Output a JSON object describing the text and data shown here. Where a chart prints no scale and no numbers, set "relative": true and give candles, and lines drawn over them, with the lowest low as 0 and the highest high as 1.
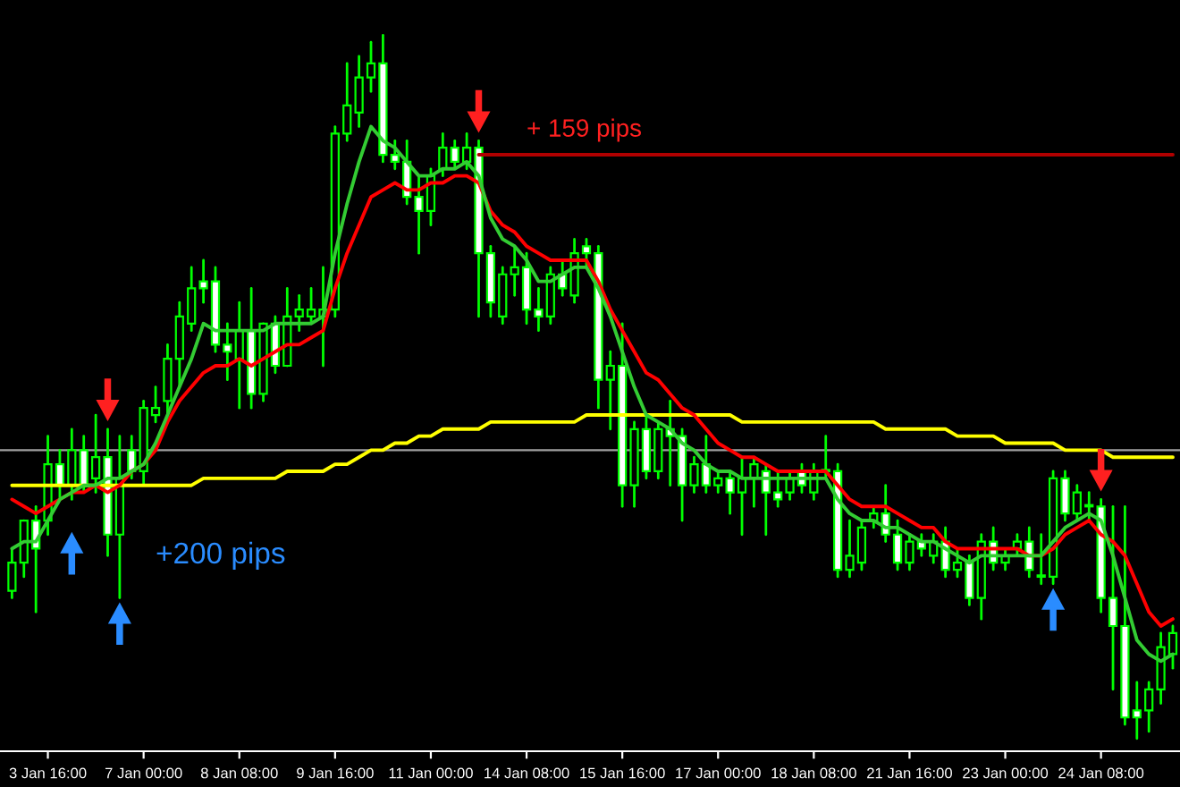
{
  "chart_data": {
    "type": "candlestick",
    "relative": true,
    "color": "#00ff00",
    "grid": false,
    "legend": false,
    "categories": [
      null,
      null,
      null,
      "3 Jan 16:00",
      null,
      null,
      null,
      null,
      null,
      null,
      null,
      "7 Jan 00:00",
      null,
      null,
      null,
      null,
      null,
      null,
      null,
      "8 Jan 08:00",
      null,
      null,
      null,
      null,
      null,
      null,
      null,
      "9 Jan 16:00",
      null,
      null,
      null,
      null,
      null,
      null,
      null,
      "11 Jan 00:00",
      null,
      null,
      null,
      null,
      null,
      null,
      null,
      "14 Jan 08:00",
      null,
      null,
      null,
      null,
      null,
      null,
      null,
      "15 Jan 16:00",
      null,
      null,
      null,
      null,
      null,
      null,
      null,
      "17 Jan 00:00",
      null,
      null,
      null,
      null,
      null,
      null,
      null,
      "18 Jan 08:00",
      null,
      null,
      null,
      null,
      null,
      null,
      null,
      "21 Jan 16:00",
      null,
      null,
      null,
      null,
      null,
      null,
      null,
      "23 Jan 00:00",
      null,
      null,
      null,
      null,
      null,
      null,
      null,
      "24 Jan 08:00",
      null,
      null,
      null,
      null,
      null,
      null
    ],
    "ohlc": [
      [
        0.21,
        0.27,
        0.2,
        0.25
      ],
      [
        0.25,
        0.31,
        0.23,
        0.31
      ],
      [
        0.31,
        0.33,
        0.18,
        0.27
      ],
      [
        0.31,
        0.43,
        0.29,
        0.39
      ],
      [
        0.39,
        0.41,
        0.34,
        0.36
      ],
      [
        0.36,
        0.44,
        0.34,
        0.41
      ],
      [
        0.41,
        0.43,
        0.35,
        0.36
      ],
      [
        0.37,
        0.46,
        0.35,
        0.4
      ],
      [
        0.4,
        0.44,
        0.26,
        0.29
      ],
      [
        0.29,
        0.43,
        0.2,
        0.37
      ],
      [
        0.41,
        0.43,
        0.37,
        0.38
      ],
      [
        0.38,
        0.48,
        0.36,
        0.47
      ],
      [
        0.46,
        0.5,
        0.45,
        0.47
      ],
      [
        0.48,
        0.56,
        0.46,
        0.54
      ],
      [
        0.54,
        0.62,
        0.5,
        0.6
      ],
      [
        0.59,
        0.67,
        0.58,
        0.64
      ],
      [
        0.65,
        0.68,
        0.62,
        0.64
      ],
      [
        0.65,
        0.67,
        0.55,
        0.56
      ],
      [
        0.56,
        0.59,
        0.51,
        0.55
      ],
      [
        0.54,
        0.62,
        0.47,
        0.58
      ],
      [
        0.58,
        0.64,
        0.47,
        0.49
      ],
      [
        0.49,
        0.59,
        0.48,
        0.59
      ],
      [
        0.59,
        0.6,
        0.52,
        0.53
      ],
      [
        0.53,
        0.64,
        0.53,
        0.6
      ],
      [
        0.6,
        0.63,
        0.58,
        0.61
      ],
      [
        0.6,
        0.64,
        0.59,
        0.61
      ],
      [
        0.6,
        0.67,
        0.53,
        0.61
      ],
      [
        0.61,
        0.87,
        0.6,
        0.86
      ],
      [
        0.86,
        0.96,
        0.85,
        0.9
      ],
      [
        0.89,
        0.97,
        0.87,
        0.94
      ],
      [
        0.94,
        0.99,
        0.92,
        0.96
      ],
      [
        0.96,
        1.0,
        0.82,
        0.83
      ],
      [
        0.83,
        0.85,
        0.81,
        0.82
      ],
      [
        0.82,
        0.85,
        0.76,
        0.77
      ],
      [
        0.77,
        0.8,
        0.69,
        0.75
      ],
      [
        0.75,
        0.81,
        0.73,
        0.8
      ],
      [
        0.81,
        0.86,
        0.8,
        0.84
      ],
      [
        0.84,
        0.85,
        0.81,
        0.82
      ],
      [
        0.82,
        0.86,
        0.81,
        0.84
      ],
      [
        0.84,
        0.85,
        0.6,
        0.69
      ],
      [
        0.69,
        0.7,
        0.6,
        0.62
      ],
      [
        0.6,
        0.67,
        0.59,
        0.66
      ],
      [
        0.66,
        0.7,
        0.63,
        0.67
      ],
      [
        0.67,
        0.69,
        0.59,
        0.61
      ],
      [
        0.61,
        0.64,
        0.58,
        0.6
      ],
      [
        0.6,
        0.67,
        0.59,
        0.66
      ],
      [
        0.66,
        0.68,
        0.63,
        0.64
      ],
      [
        0.63,
        0.71,
        0.62,
        0.69
      ],
      [
        0.7,
        0.71,
        0.67,
        0.69
      ],
      [
        0.69,
        0.7,
        0.47,
        0.51
      ],
      [
        0.51,
        0.55,
        0.44,
        0.53
      ],
      [
        0.53,
        0.59,
        0.33,
        0.36
      ],
      [
        0.36,
        0.45,
        0.33,
        0.44
      ],
      [
        0.44,
        0.46,
        0.37,
        0.38
      ],
      [
        0.38,
        0.45,
        0.37,
        0.44
      ],
      [
        0.44,
        0.48,
        0.36,
        0.43
      ],
      [
        0.43,
        0.44,
        0.31,
        0.36
      ],
      [
        0.36,
        0.4,
        0.35,
        0.39
      ],
      [
        0.39,
        0.43,
        0.35,
        0.36
      ],
      [
        0.36,
        0.38,
        0.35,
        0.37
      ],
      [
        0.37,
        0.38,
        0.32,
        0.35
      ],
      [
        0.35,
        0.4,
        0.29,
        0.37
      ],
      [
        0.37,
        0.4,
        0.33,
        0.39
      ],
      [
        0.38,
        0.39,
        0.29,
        0.35
      ],
      [
        0.35,
        0.38,
        0.33,
        0.34
      ],
      [
        0.35,
        0.38,
        0.34,
        0.37
      ],
      [
        0.38,
        0.39,
        0.35,
        0.36
      ],
      [
        0.35,
        0.39,
        0.34,
        0.38
      ],
      [
        0.38,
        0.43,
        0.37,
        0.38
      ],
      [
        0.38,
        0.39,
        0.23,
        0.24
      ],
      [
        0.24,
        0.31,
        0.23,
        0.26
      ],
      [
        0.25,
        0.31,
        0.24,
        0.3
      ],
      [
        0.31,
        0.33,
        0.3,
        0.32
      ],
      [
        0.32,
        0.36,
        0.28,
        0.29
      ],
      [
        0.29,
        0.31,
        0.24,
        0.25
      ],
      [
        0.25,
        0.29,
        0.24,
        0.28
      ],
      [
        0.28,
        0.29,
        0.26,
        0.27
      ],
      [
        0.26,
        0.29,
        0.25,
        0.28
      ],
      [
        0.28,
        0.3,
        0.23,
        0.24
      ],
      [
        0.24,
        0.27,
        0.23,
        0.25
      ],
      [
        0.25,
        0.26,
        0.19,
        0.2
      ],
      [
        0.2,
        0.29,
        0.17,
        0.28
      ],
      [
        0.28,
        0.3,
        0.24,
        0.25
      ],
      [
        0.25,
        0.27,
        0.24,
        0.26
      ],
      [
        0.27,
        0.29,
        0.26,
        0.28
      ],
      [
        0.28,
        0.3,
        0.23,
        0.24
      ],
      [
        0.23,
        0.29,
        0.22,
        0.23
      ],
      [
        0.23,
        0.38,
        0.22,
        0.37
      ],
      [
        0.37,
        0.38,
        0.31,
        0.32
      ],
      [
        0.32,
        0.36,
        0.31,
        0.35
      ],
      [
        0.33,
        0.35,
        0.31,
        0.33
      ],
      [
        0.33,
        0.34,
        0.18,
        0.2
      ],
      [
        0.2,
        0.33,
        0.07,
        0.16
      ],
      [
        0.16,
        0.33,
        0.02,
        0.03
      ],
      [
        0.04,
        0.08,
        0.0,
        0.03
      ],
      [
        0.04,
        0.08,
        0.01,
        0.07
      ],
      [
        0.07,
        0.15,
        0.05,
        0.13
      ],
      [
        0.12,
        0.16,
        0.1,
        0.15
      ]
    ],
    "series": [
      {
        "type": "line",
        "color": "#ffff00",
        "values": [
          0.36,
          0.36,
          0.36,
          0.36,
          0.36,
          0.36,
          0.36,
          0.36,
          0.36,
          0.36,
          0.36,
          0.36,
          0.36,
          0.36,
          0.36,
          0.36,
          0.37,
          0.37,
          0.37,
          0.37,
          0.37,
          0.37,
          0.37,
          0.38,
          0.38,
          0.38,
          0.38,
          0.39,
          0.39,
          0.4,
          0.41,
          0.41,
          0.42,
          0.42,
          0.43,
          0.43,
          0.44,
          0.44,
          0.44,
          0.44,
          0.45,
          0.45,
          0.45,
          0.45,
          0.45,
          0.45,
          0.45,
          0.45,
          0.46,
          0.46,
          0.46,
          0.46,
          0.46,
          0.46,
          0.46,
          0.46,
          0.46,
          0.46,
          0.46,
          0.46,
          0.46,
          0.45,
          0.45,
          0.45,
          0.45,
          0.45,
          0.45,
          0.45,
          0.45,
          0.45,
          0.45,
          0.45,
          0.45,
          0.44,
          0.44,
          0.44,
          0.44,
          0.44,
          0.44,
          0.43,
          0.43,
          0.43,
          0.43,
          0.42,
          0.42,
          0.42,
          0.42,
          0.42,
          0.41,
          0.41,
          0.41,
          0.41,
          0.4,
          0.4,
          0.4,
          0.4,
          0.4,
          0.4
        ]
      },
      {
        "type": "line",
        "color": "#ff0000",
        "values": [
          0.34,
          0.33,
          0.32,
          0.33,
          0.34,
          0.35,
          0.35,
          0.36,
          0.35,
          0.36,
          0.38,
          0.39,
          0.41,
          0.45,
          0.48,
          0.5,
          0.52,
          0.53,
          0.53,
          0.54,
          0.53,
          0.54,
          0.55,
          0.56,
          0.56,
          0.57,
          0.58,
          0.64,
          0.69,
          0.73,
          0.77,
          0.78,
          0.79,
          0.78,
          0.78,
          0.79,
          0.79,
          0.8,
          0.8,
          0.79,
          0.75,
          0.73,
          0.72,
          0.7,
          0.69,
          0.68,
          0.68,
          0.68,
          0.68,
          0.65,
          0.61,
          0.58,
          0.55,
          0.52,
          0.51,
          0.49,
          0.47,
          0.46,
          0.44,
          0.42,
          0.41,
          0.4,
          0.4,
          0.39,
          0.38,
          0.38,
          0.38,
          0.38,
          0.38,
          0.36,
          0.34,
          0.33,
          0.33,
          0.33,
          0.32,
          0.31,
          0.3,
          0.3,
          0.28,
          0.27,
          0.27,
          0.27,
          0.27,
          0.27,
          0.27,
          0.26,
          0.26,
          0.27,
          0.29,
          0.3,
          0.31,
          0.29,
          0.28,
          0.26,
          0.22,
          0.18,
          0.16,
          0.17
        ]
      },
      {
        "type": "line",
        "color": "#33cc33",
        "values": [
          0.27,
          0.28,
          0.28,
          0.31,
          0.34,
          0.35,
          0.36,
          0.36,
          0.37,
          0.37,
          0.38,
          0.39,
          0.42,
          0.46,
          0.5,
          0.54,
          0.59,
          0.58,
          0.58,
          0.58,
          0.58,
          0.58,
          0.59,
          0.59,
          0.59,
          0.59,
          0.6,
          0.69,
          0.76,
          0.82,
          0.87,
          0.85,
          0.84,
          0.82,
          0.8,
          0.8,
          0.81,
          0.81,
          0.82,
          0.8,
          0.74,
          0.71,
          0.7,
          0.68,
          0.65,
          0.65,
          0.66,
          0.67,
          0.67,
          0.64,
          0.6,
          0.55,
          0.5,
          0.46,
          0.45,
          0.44,
          0.42,
          0.41,
          0.39,
          0.38,
          0.38,
          0.37,
          0.37,
          0.37,
          0.37,
          0.37,
          0.37,
          0.37,
          0.37,
          0.34,
          0.32,
          0.31,
          0.31,
          0.3,
          0.3,
          0.29,
          0.28,
          0.28,
          0.27,
          0.26,
          0.25,
          0.26,
          0.26,
          0.26,
          0.26,
          0.26,
          0.26,
          0.28,
          0.3,
          0.31,
          0.32,
          0.31,
          0.26,
          0.2,
          0.14,
          0.12,
          0.11,
          0.12
        ]
      },
      {
        "type": "line",
        "color": "#b00000",
        "values": [
          null,
          null,
          null,
          null,
          null,
          null,
          null,
          null,
          null,
          null,
          null,
          null,
          null,
          null,
          null,
          null,
          null,
          null,
          null,
          null,
          null,
          null,
          null,
          null,
          null,
          null,
          null,
          null,
          null,
          null,
          null,
          null,
          null,
          null,
          null,
          null,
          null,
          null,
          null,
          0.83,
          0.83,
          0.83,
          0.83,
          0.83,
          0.83,
          0.83,
          0.83,
          0.83,
          0.83,
          0.83,
          0.83,
          0.83,
          0.83,
          0.83,
          0.83,
          0.83,
          0.83,
          0.83,
          0.83,
          0.83,
          0.83,
          0.83,
          0.83,
          0.83,
          0.83,
          0.83,
          0.83,
          0.83,
          0.83,
          0.83,
          0.83,
          0.83,
          0.83,
          0.83,
          0.83,
          0.83,
          0.83,
          0.83,
          0.83,
          0.83,
          0.83,
          0.83,
          0.83,
          0.83,
          0.83,
          0.83,
          0.83,
          0.83,
          0.83,
          0.83,
          0.83,
          0.83,
          0.83,
          0.83,
          0.83,
          0.83,
          0.83,
          0.83
        ]
      }
    ],
    "ref_lines": [
      {
        "axis": "y",
        "value": 0.41,
        "color": "#a0a0a0"
      }
    ],
    "annotations": [
      "+ 159 pips",
      "+200 pips"
    ]
  }
}
